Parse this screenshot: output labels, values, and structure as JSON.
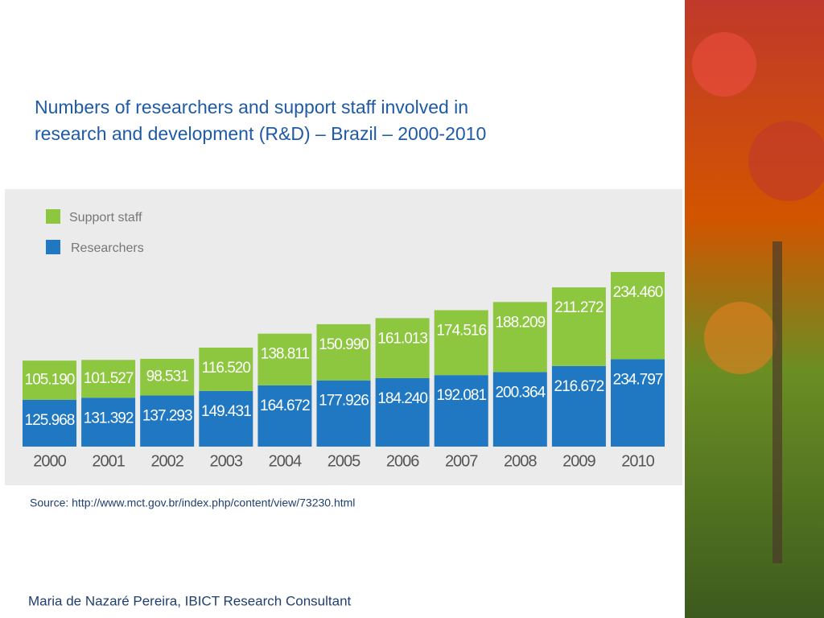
{
  "chart_data": {
    "type": "stacked_bar",
    "title": [
      "Numbers of researchers and support staff involved in",
      "research and development (R&D) – Brazil – 2000-2010"
    ],
    "categories": [
      "2000",
      "2001",
      "2002",
      "2003",
      "2004",
      "2005",
      "2006",
      "2007",
      "2008",
      "2009",
      "2010"
    ],
    "series": [
      {
        "name": "Researchers",
        "color": "#1f78c1",
        "values": [
          125968,
          131392,
          137293,
          149431,
          164672,
          177926,
          184240,
          192081,
          200364,
          216672,
          234797
        ],
        "value_labels": [
          "125.968",
          "131.392",
          "137.293",
          "149.431",
          "164.672",
          "177.926",
          "184.240",
          "192.081",
          "200.364",
          "216.672",
          "234.797"
        ]
      },
      {
        "name": "Support staff",
        "color": "#8dc63f",
        "values": [
          105190,
          101527,
          98531,
          116520,
          138811,
          150990,
          161013,
          174516,
          188209,
          211272,
          234460
        ],
        "value_labels": [
          "105.190",
          "101.527",
          "98.531",
          "116.520",
          "138.811",
          "150.990",
          "161.013",
          "174.516",
          "188.209",
          "211.272",
          "234.460"
        ]
      }
    ],
    "source": "Source: http://www.mct.gov.br/index.php/content/view/73230.html"
  },
  "footer": "Maria de Nazaré Pereira, IBICT Research Consultant"
}
